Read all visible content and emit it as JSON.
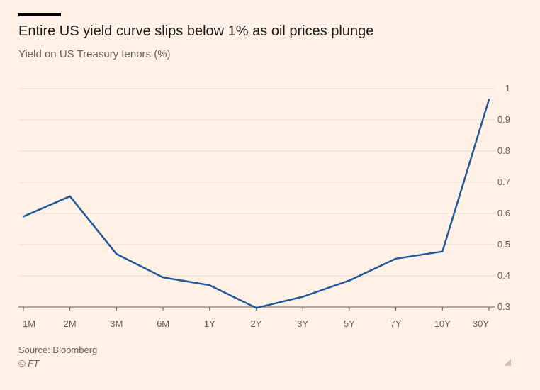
{
  "header": {
    "title": "Entire US yield curve slips below 1% as oil prices plunge",
    "subtitle": "Yield on US Treasury tenors (%)"
  },
  "footer": {
    "source": "Source: Bloomberg",
    "credit": "© FT"
  },
  "colors": {
    "background": "#fff1e5",
    "line": "#1f5799",
    "grid": "#e6d9ce",
    "text": "#66605c"
  },
  "chart_data": {
    "type": "line",
    "title": "Entire US yield curve slips below 1% as oil prices plunge",
    "subtitle": "Yield on US Treasury tenors (%)",
    "xlabel": "",
    "ylabel": "",
    "categories": [
      "1M",
      "2M",
      "3M",
      "6M",
      "1Y",
      "2Y",
      "3Y",
      "5Y",
      "7Y",
      "10Y",
      "30Y"
    ],
    "series": [
      {
        "values": [
          0.59,
          0.655,
          0.47,
          0.395,
          0.37,
          0.297,
          0.333,
          0.385,
          0.455,
          0.478,
          0.965
        ]
      }
    ],
    "ylim": [
      0.3,
      1
    ],
    "yticks": [
      {
        "value": 1,
        "label": "1"
      },
      {
        "value": 0.9,
        "label": "0.9"
      },
      {
        "value": 0.8,
        "label": "0.8"
      },
      {
        "value": 0.7,
        "label": "0.7"
      },
      {
        "value": 0.6,
        "label": "0.6"
      },
      {
        "value": 0.5,
        "label": "0.5"
      },
      {
        "value": 0.4,
        "label": "0.4"
      },
      {
        "value": 0.3,
        "label": "0.3"
      }
    ],
    "y_axis_side": "right",
    "grid": true,
    "legend": "none"
  }
}
